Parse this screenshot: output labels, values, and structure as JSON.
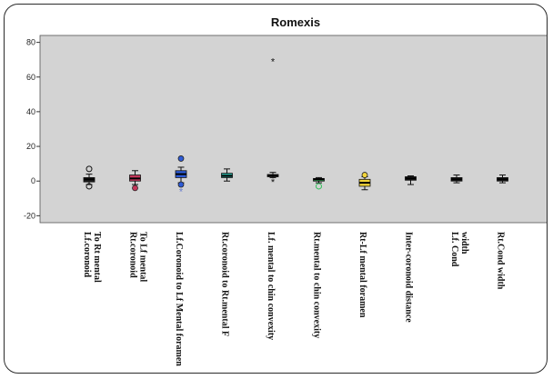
{
  "chart_data": {
    "type": "box",
    "title": "Romexis",
    "xlabel": "",
    "ylabel": "",
    "ylim": [
      -24,
      84
    ],
    "yticks": [
      80,
      60,
      40,
      20,
      0,
      -20
    ],
    "grid": false,
    "legend": "none",
    "categories": [
      [
        "Lf.coronoid",
        "To Rt mental"
      ],
      [
        "Rt.coronoid",
        "To Lf mental"
      ],
      [
        "Lf.Coronoid to Lf Mental foramen"
      ],
      [
        "Rt.coronoid  to Rt.mental F"
      ],
      [
        "Lf. mental to chin convexity"
      ],
      [
        "Rt.mental  to chin convexity"
      ],
      [
        "Rt-Lf mental foramen"
      ],
      [
        "Inter-coronoid distance"
      ],
      [
        "Lf. Cond",
        "width"
      ],
      [
        "Rt.Cond width"
      ]
    ],
    "boxes": [
      {
        "min": -2,
        "q1": -0.5,
        "median": 1,
        "q3": 2,
        "max": 4,
        "outliers": [
          {
            "value": 7,
            "marker": "circle"
          },
          {
            "value": -3,
            "marker": "circle"
          }
        ],
        "color": "#1e1e1e"
      },
      {
        "min": -2,
        "q1": 0,
        "median": 1.5,
        "q3": 3.5,
        "max": 6,
        "outliers": [
          {
            "value": -4,
            "marker": "circle-filled"
          }
        ],
        "color": "#c4365a"
      },
      {
        "min": -1,
        "q1": 2,
        "median": 4,
        "q3": 6,
        "max": 8,
        "outliers": [
          {
            "value": 13,
            "marker": "circle-filled"
          },
          {
            "value": -2,
            "marker": "circle-filled"
          },
          {
            "value": -6,
            "marker": "star"
          }
        ],
        "color": "#2e5bd6"
      },
      {
        "min": 0,
        "q1": 2,
        "median": 3,
        "q3": 4.5,
        "max": 7,
        "outliers": [],
        "color": "#25a89a"
      },
      {
        "min": 2,
        "q1": 2.5,
        "median": 3,
        "q3": 3.8,
        "max": 5,
        "outliers": [
          {
            "value": 69,
            "marker": "star"
          },
          {
            "value": -0.5,
            "marker": "star"
          }
        ],
        "color": "#1e1e1e"
      },
      {
        "min": -1,
        "q1": 0,
        "median": 1,
        "q3": 1.5,
        "max": 2,
        "outliers": [
          {
            "value": -3,
            "marker": "circle"
          }
        ],
        "color": "#2fbf5a"
      },
      {
        "min": -5,
        "q1": -3,
        "median": -1,
        "q3": 1,
        "max": 2.5,
        "outliers": [
          {
            "value": 3.5,
            "marker": "circle-filled"
          }
        ],
        "color": "#f2d43a"
      },
      {
        "min": -2,
        "q1": 0.5,
        "median": 1.5,
        "q3": 2.5,
        "max": 3,
        "outliers": [],
        "color": "#1e1e1e"
      },
      {
        "min": -1,
        "q1": 0,
        "median": 1,
        "q3": 2,
        "max": 3.5,
        "outliers": [],
        "color": "#1e1e1e"
      },
      {
        "min": -1,
        "q1": 0,
        "median": 1,
        "q3": 2,
        "max": 3.5,
        "outliers": [],
        "color": "#1e1e1e"
      }
    ],
    "plot_background": "#d3d3d3"
  }
}
